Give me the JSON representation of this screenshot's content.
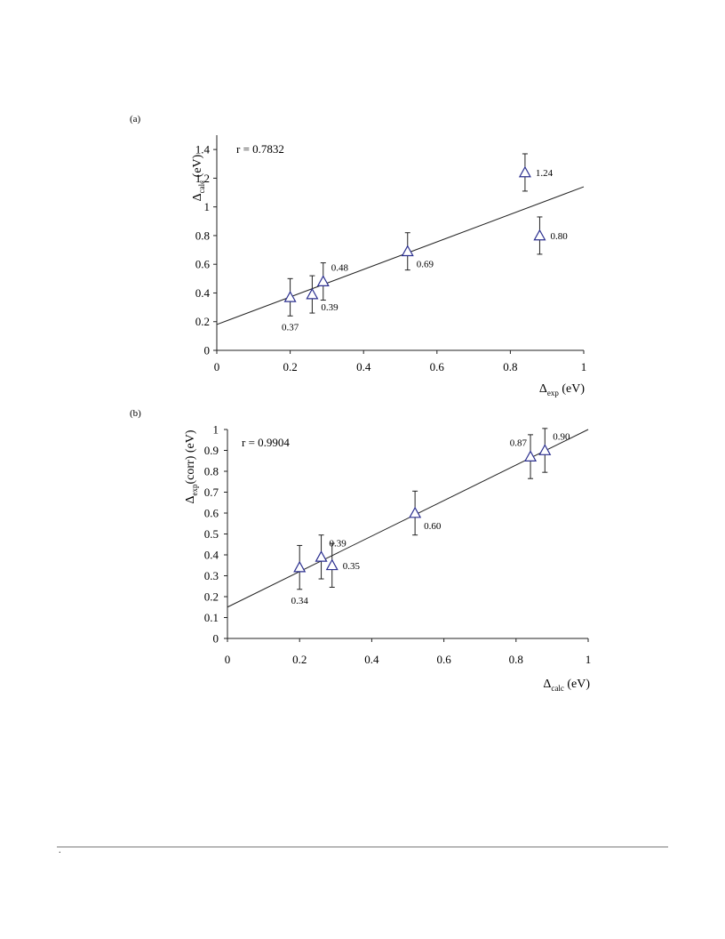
{
  "footer": {
    "mark": "."
  },
  "chart_data": [
    {
      "type": "scatter",
      "panel_label": "(a)",
      "annotation": "r = 0.7832",
      "x_axis": {
        "prefix": "Δ",
        "sub": "exp",
        "unit": " (eV)"
      },
      "y_axis": {
        "prefix": "Δ",
        "sub": "calc",
        "unit": " (eV)"
      },
      "xlim": [
        0,
        1
      ],
      "ylim": [
        0,
        1.5
      ],
      "xticks": [
        0,
        0.2,
        0.4,
        0.6,
        0.8,
        1
      ],
      "xtick_labels": [
        "0",
        "0.2",
        "0.4",
        "0.6",
        "0.8",
        "1"
      ],
      "yticks": [
        0,
        0.2,
        0.4,
        0.6,
        0.8,
        1,
        1.2,
        1.4
      ],
      "ytick_labels": [
        "0",
        "0.2",
        "0.4",
        "0.6",
        "0.8",
        "1",
        "1.2",
        "1.4"
      ],
      "grid": false,
      "marker_color": "#2b2f8f",
      "points": [
        {
          "x": 0.2,
          "y": 0.37,
          "err": 0.13,
          "label": "0.37",
          "label_pos": "below"
        },
        {
          "x": 0.26,
          "y": 0.39,
          "err": 0.13,
          "label": "0.39",
          "label_pos": "below-right"
        },
        {
          "x": 0.29,
          "y": 0.48,
          "err": 0.13,
          "label": "0.48",
          "label_pos": "above-right"
        },
        {
          "x": 0.52,
          "y": 0.69,
          "err": 0.13,
          "label": "0.69",
          "label_pos": "below-right"
        },
        {
          "x": 0.84,
          "y": 1.24,
          "err": 0.13,
          "label": "1.24",
          "label_pos": "right"
        },
        {
          "x": 0.88,
          "y": 0.8,
          "err": 0.13,
          "label": "0.80",
          "label_pos": "right"
        }
      ],
      "fit_line": {
        "x": [
          0,
          1
        ],
        "y": [
          0.18,
          1.14
        ]
      }
    },
    {
      "type": "scatter",
      "panel_label": "(b)",
      "annotation": "r = 0.9904",
      "x_axis": {
        "prefix": "Δ",
        "sub": "calc",
        "unit": " (eV)"
      },
      "y_axis": {
        "prefix": "Δ",
        "sub": "exp",
        "unit": "(corr) (eV)"
      },
      "xlim": [
        0,
        1
      ],
      "ylim": [
        0,
        1
      ],
      "xticks": [
        0,
        0.2,
        0.4,
        0.6,
        0.8,
        1
      ],
      "xtick_labels": [
        "0",
        "0.2",
        "0.4",
        "0.6",
        "0.8",
        "1"
      ],
      "yticks": [
        0,
        0.1,
        0.2,
        0.3,
        0.4,
        0.5,
        0.6,
        0.7,
        0.8,
        0.9,
        1
      ],
      "ytick_labels": [
        "0",
        "0.1",
        "0.2",
        "0.3",
        "0.4",
        "0.5",
        "0.6",
        "0.7",
        "0.8",
        "0.9",
        "1"
      ],
      "grid": false,
      "marker_color": "#2b2f8f",
      "points": [
        {
          "x": 0.2,
          "y": 0.34,
          "err": 0.105,
          "label": "0.34",
          "label_pos": "below"
        },
        {
          "x": 0.26,
          "y": 0.39,
          "err": 0.105,
          "label": "0.39",
          "label_pos": "above-right"
        },
        {
          "x": 0.29,
          "y": 0.35,
          "err": 0.105,
          "label": "0.35",
          "label_pos": "right"
        },
        {
          "x": 0.52,
          "y": 0.6,
          "err": 0.105,
          "label": "0.60",
          "label_pos": "below-right"
        },
        {
          "x": 0.84,
          "y": 0.87,
          "err": 0.105,
          "label": "0.87",
          "label_pos": "above-left"
        },
        {
          "x": 0.88,
          "y": 0.9,
          "err": 0.105,
          "label": "0.90",
          "label_pos": "above-right"
        }
      ],
      "fit_line": {
        "x": [
          0,
          1
        ],
        "y": [
          0.15,
          1.0
        ]
      }
    }
  ]
}
